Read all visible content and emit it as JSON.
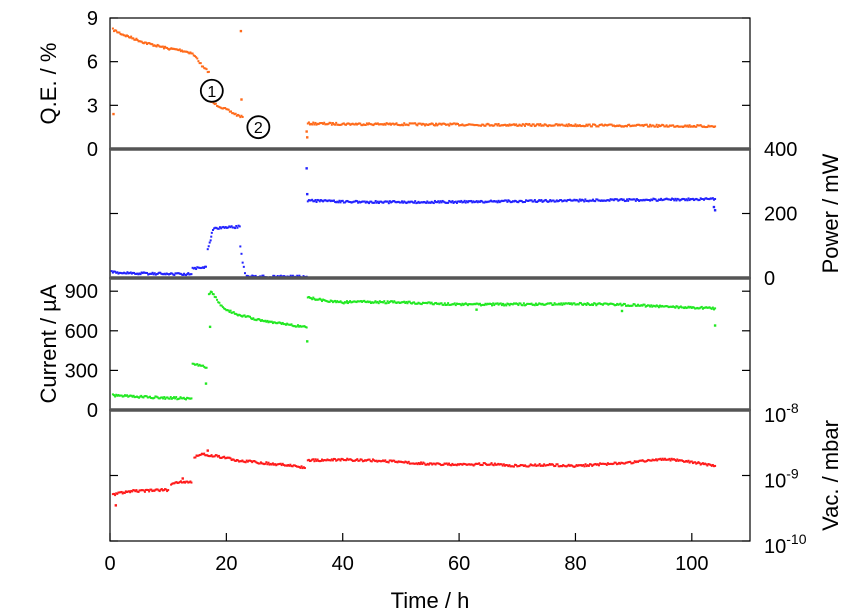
{
  "chart_data": [
    {
      "type": "scatter",
      "ylabel": "Q.E. / %",
      "ylim": [
        0,
        9
      ],
      "yticks": [
        "0",
        "3",
        "6",
        "9"
      ],
      "color": "#ff6a1a",
      "annotations": [
        {
          "label": "1",
          "x": 17.5,
          "y": 4.0
        },
        {
          "label": "2",
          "x": 25.5,
          "y": 1.5
        }
      ],
      "series": [
        {
          "x": [
            0.5,
            2,
            4,
            6,
            8,
            10,
            12,
            14,
            15,
            16,
            17
          ],
          "y": [
            8.2,
            7.9,
            7.6,
            7.3,
            7.1,
            6.9,
            6.8,
            6.6,
            6.2,
            5.6,
            5.3
          ]
        },
        {
          "x": [
            17.2,
            18,
            19,
            20,
            21,
            22,
            22.8
          ],
          "y": [
            3.3,
            3.1,
            2.9,
            2.7,
            2.5,
            2.3,
            2.2
          ]
        },
        {
          "x": [
            34,
            40,
            50,
            60,
            70,
            80,
            90,
            100,
            104
          ],
          "y": [
            1.75,
            1.72,
            1.7,
            1.68,
            1.65,
            1.63,
            1.6,
            1.58,
            1.55
          ]
        }
      ],
      "outliers": {
        "x": [
          0.6,
          22.5,
          22.6,
          16.6,
          33.8,
          33.9
        ],
        "y": [
          2.4,
          8.1,
          3.4,
          3.9,
          1.2,
          0.8
        ]
      }
    },
    {
      "type": "scatter",
      "ylabel": "Power / mW",
      "ylim": [
        0,
        400
      ],
      "yticks": [
        "0",
        "200",
        "400"
      ],
      "color": "#2323ff",
      "series": [
        {
          "x": [
            0.3,
            3,
            6,
            9,
            12,
            14
          ],
          "y": [
            18,
            15,
            14,
            13,
            12,
            12
          ]
        },
        {
          "x": [
            14.2,
            15,
            16,
            16.5
          ],
          "y": [
            30,
            30,
            32,
            35
          ]
        },
        {
          "x": [
            16.8,
            17.3,
            17.5
          ],
          "y": [
            90,
            120,
            140
          ]
        },
        {
          "x": [
            17.7,
            18.5,
            19.5,
            20.5,
            21.5,
            22.3
          ],
          "y": [
            150,
            155,
            157,
            157,
            158,
            160
          ]
        },
        {
          "x": [
            22.4,
            22.8,
            23.2
          ],
          "y": [
            100,
            50,
            15
          ]
        },
        {
          "x": [
            23.5,
            26,
            29,
            32,
            33.8
          ],
          "y": [
            5,
            4,
            4,
            4,
            4
          ]
        },
        {
          "x": [
            34,
            40,
            50,
            60,
            70,
            80,
            90,
            100,
            104
          ],
          "y": [
            240,
            236,
            235,
            236,
            238,
            240,
            242,
            244,
            245
          ]
        }
      ],
      "outliers": {
        "x": [
          33.8,
          33.9,
          104,
          103.8
        ],
        "y": [
          340,
          260,
          210,
          220
        ]
      }
    },
    {
      "type": "scatter",
      "ylabel": "Current / µA",
      "ylim": [
        0,
        1000
      ],
      "yticks": [
        "0",
        "300",
        "600",
        "900"
      ],
      "color": "#22e822",
      "series": [
        {
          "x": [
            0.5,
            2,
            5,
            8,
            11,
            14
          ],
          "y": [
            110,
            108,
            100,
            95,
            90,
            88
          ]
        },
        {
          "x": [
            14.2,
            15,
            16,
            16.6
          ],
          "y": [
            345,
            340,
            330,
            320
          ]
        },
        {
          "x": [
            17,
            17.5,
            18,
            19,
            20,
            22,
            25,
            28,
            31,
            33.8
          ],
          "y": [
            880,
            900,
            860,
            800,
            760,
            720,
            690,
            665,
            645,
            625
          ]
        },
        {
          "x": [
            34,
            37,
            40,
            42,
            50,
            60,
            70,
            80,
            90,
            100,
            104
          ],
          "y": [
            850,
            830,
            815,
            820,
            815,
            800,
            800,
            805,
            795,
            775,
            770
          ]
        }
      ],
      "outliers": {
        "x": [
          16.5,
          17.2,
          33.9,
          63,
          88,
          104
        ],
        "y": [
          200,
          630,
          520,
          760,
          750,
          640
        ]
      }
    },
    {
      "type": "scatter",
      "ylabel": "Vac. / mbar",
      "yscale": "log",
      "ylim": [
        1e-10,
        1e-08
      ],
      "yticks": [
        {
          "base": "10",
          "exp": "-10"
        },
        {
          "base": "10",
          "exp": "-9"
        },
        {
          "base": "10",
          "exp": "-8"
        }
      ],
      "color": "#ff1a1a",
      "series": [
        {
          "x": [
            0.5,
            2,
            4,
            6,
            8,
            10
          ],
          "y": [
            5e-10,
            5.5e-10,
            5.8e-10,
            5.8e-10,
            6e-10,
            6e-10
          ]
        },
        {
          "x": [
            10.5,
            12,
            14
          ],
          "y": [
            7.5e-10,
            8e-10,
            7.8e-10
          ]
        },
        {
          "x": [
            14.5,
            16,
            18,
            20,
            22,
            25,
            28,
            31,
            33.5
          ],
          "y": [
            1.9e-09,
            2.1e-09,
            2e-09,
            1.85e-09,
            1.7e-09,
            1.6e-09,
            1.5e-09,
            1.45e-09,
            1.3e-09
          ]
        },
        {
          "x": [
            34,
            40,
            45,
            50,
            55,
            60,
            65,
            70,
            75,
            80,
            85,
            90,
            95,
            100,
            104
          ],
          "y": [
            1.7e-09,
            1.75e-09,
            1.7e-09,
            1.6e-09,
            1.5e-09,
            1.45e-09,
            1.5e-09,
            1.4e-09,
            1.45e-09,
            1.4e-09,
            1.5e-09,
            1.6e-09,
            1.8e-09,
            1.6e-09,
            1.4e-09
          ]
        }
      ],
      "outliers": {
        "x": [
          1,
          16.8,
          12.5
        ],
        "y": [
          3.5e-10,
          2.4e-09,
          9e-10
        ]
      }
    }
  ],
  "xaxis": {
    "label": "Time / h",
    "xlim": [
      0,
      110
    ],
    "ticks": [
      0,
      20,
      40,
      60,
      80,
      100
    ]
  }
}
